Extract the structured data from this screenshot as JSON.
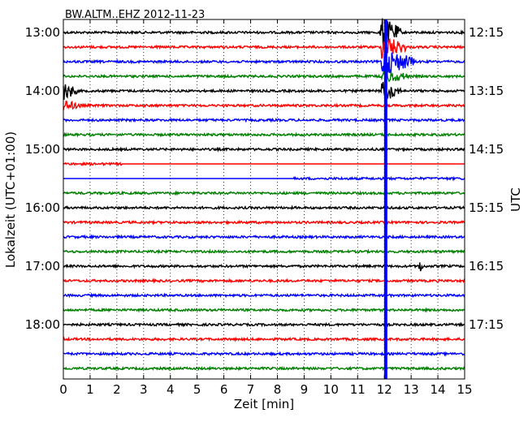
{
  "chart_data": {
    "type": "line",
    "title": "BW.ALTM..EHZ 2012-11-23",
    "xlabel": "Zeit  [min]",
    "ylabel_left": "Lokalzeit (UTC+01:00)",
    "ylabel_right": "UTC",
    "xlim": [
      0,
      15
    ],
    "x_ticks": [
      "0",
      "1",
      "2",
      "3",
      "4",
      "5",
      "6",
      "7",
      "8",
      "9",
      "10",
      "11",
      "12",
      "13",
      "14",
      "15"
    ],
    "left_tick_labels": [
      "13:00",
      "14:00",
      "15:00",
      "16:00",
      "17:00",
      "18:00"
    ],
    "right_tick_labels": [
      "12:15",
      "13:15",
      "14:15",
      "15:15",
      "16:15",
      "17:15"
    ],
    "color_cycle": [
      "#000000",
      "#ff0000",
      "#0000ff",
      "#008000"
    ],
    "trace_count": 24,
    "amplitude_default": 0.35,
    "grid": "vertical-dotted",
    "events": [
      {
        "trace": 4,
        "x_start": 0.0,
        "x_end": 0.5,
        "amplitude": 3.0
      },
      {
        "trace": 5,
        "x_start": 0.0,
        "x_end": 0.7,
        "amplitude": 1.8
      },
      {
        "trace": 0,
        "x_start": 11.85,
        "x_end": 12.6,
        "amplitude": 5.0
      },
      {
        "trace": 1,
        "x_start": 11.9,
        "x_end": 12.8,
        "amplitude": 4.0
      },
      {
        "trace": 2,
        "x_start": 11.9,
        "x_end": 13.1,
        "amplitude": 4.5
      },
      {
        "trace": 3,
        "x_start": 11.9,
        "x_end": 12.9,
        "amplitude": 2.5
      },
      {
        "trace": 4,
        "x_start": 11.9,
        "x_end": 12.6,
        "amplitude": 3.5
      },
      {
        "trace": 16,
        "x_start": 13.3,
        "x_end": 13.45,
        "amplitude": 2.5
      }
    ],
    "gaps": [
      {
        "trace": 9,
        "x_start": 2.2,
        "x_end": 15.0
      },
      {
        "trace": 10,
        "x_start": 0.0,
        "x_end": 8.6
      }
    ],
    "vertical_spike": {
      "x": 12.05,
      "color": "#0000ff"
    }
  }
}
